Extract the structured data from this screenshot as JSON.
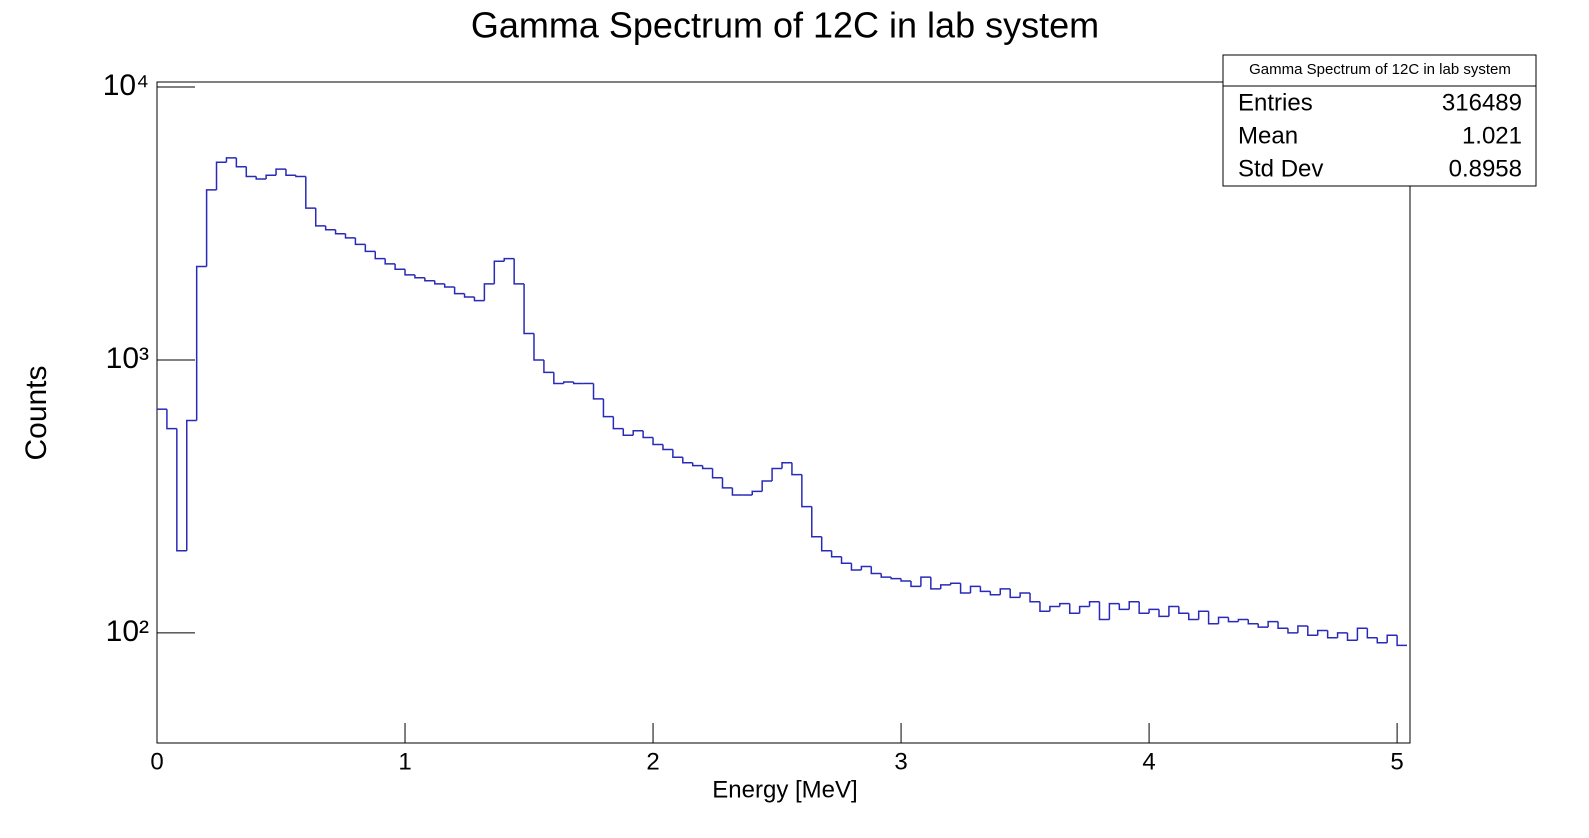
{
  "chart_data": {
    "type": "histogram",
    "title": "Gamma Spectrum of 12C in lab system",
    "x_label": "Energy [MeV]",
    "y_label": "Counts",
    "color": "#2a2ab8",
    "log_y": true,
    "xlim": [
      0,
      5.052
    ],
    "ylim": [
      39.5,
      10430
    ],
    "xticks": [
      0,
      1,
      2,
      3,
      4,
      5
    ],
    "yticks": [
      {
        "value": 100,
        "label": "10²"
      },
      {
        "value": 1000,
        "label": "10³"
      },
      {
        "value": 10000,
        "label": "10⁴"
      }
    ],
    "bins": [
      0,
      0.04,
      0.08,
      0.12,
      0.16,
      0.2,
      0.24,
      0.28,
      0.32,
      0.36,
      0.4,
      0.44,
      0.48,
      0.52,
      0.56,
      0.6,
      0.64,
      0.68,
      0.72,
      0.76,
      0.8,
      0.84,
      0.88,
      0.92,
      0.96,
      1,
      1.04,
      1.08,
      1.12,
      1.16,
      1.2,
      1.24,
      1.28,
      1.32,
      1.36,
      1.4,
      1.44,
      1.48,
      1.52,
      1.56,
      1.6,
      1.64,
      1.68,
      1.72,
      1.76,
      1.8,
      1.84,
      1.88,
      1.92,
      1.96,
      2,
      2.04,
      2.08,
      2.12,
      2.16,
      2.2,
      2.24,
      2.28,
      2.32,
      2.36,
      2.4,
      2.44,
      2.48,
      2.52,
      2.56,
      2.6,
      2.64,
      2.68,
      2.72,
      2.76,
      2.8,
      2.84,
      2.88,
      2.92,
      2.96,
      3,
      3.04,
      3.08,
      3.12,
      3.16,
      3.2,
      3.24,
      3.28,
      3.32,
      3.36,
      3.4,
      3.44,
      3.48,
      3.52,
      3.56,
      3.6,
      3.64,
      3.68,
      3.72,
      3.76,
      3.8,
      3.84,
      3.88,
      3.92,
      3.96,
      4,
      4.04,
      4.08,
      4.12,
      4.16,
      4.2,
      4.24,
      4.28,
      4.32,
      4.36,
      4.4,
      4.44,
      4.48,
      4.52,
      4.56,
      4.6,
      4.64,
      4.68,
      4.72,
      4.76,
      4.8,
      4.84,
      4.88,
      4.92,
      4.96,
      5,
      5.04
    ],
    "values": [
      660,
      560,
      200,
      600,
      2200,
      4200,
      5300,
      5500,
      5100,
      4700,
      4600,
      4750,
      5000,
      4750,
      4700,
      3600,
      3100,
      3000,
      2900,
      2800,
      2650,
      2500,
      2350,
      2250,
      2150,
      2050,
      2000,
      1950,
      1900,
      1850,
      1750,
      1700,
      1650,
      1900,
      2300,
      2350,
      1900,
      1250,
      1000,
      900,
      820,
      830,
      820,
      820,
      720,
      620,
      560,
      530,
      550,
      520,
      490,
      470,
      440,
      420,
      410,
      400,
      370,
      340,
      320,
      320,
      330,
      360,
      400,
      420,
      380,
      290,
      225,
      200,
      190,
      180,
      170,
      175,
      165,
      160,
      158,
      155,
      148,
      160,
      145,
      150,
      152,
      140,
      148,
      142,
      138,
      145,
      135,
      140,
      130,
      120,
      125,
      128,
      118,
      125,
      130,
      112,
      128,
      122,
      130,
      118,
      122,
      115,
      125,
      118,
      112,
      120,
      108,
      114,
      110,
      112,
      108,
      105,
      110,
      104,
      100,
      106,
      98,
      102,
      96,
      100,
      94,
      104,
      96,
      92,
      98,
      90
    ],
    "stats": {
      "title": "Gamma Spectrum of 12C in lab system",
      "rows": [
        [
          "Entries",
          "316489"
        ],
        [
          "Mean",
          "1.021"
        ],
        [
          "Std Dev",
          "0.8958"
        ]
      ]
    }
  }
}
